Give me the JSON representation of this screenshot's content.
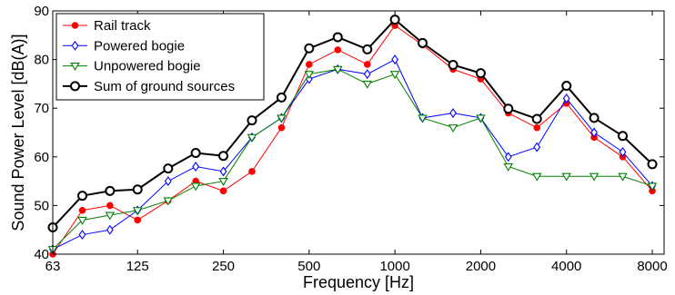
{
  "chart_data": {
    "type": "line",
    "xlabel": "Frequency [Hz]",
    "ylabel": "Sound Power Level [dB(A)]",
    "x": [
      63,
      80,
      100,
      125,
      160,
      200,
      250,
      315,
      400,
      500,
      630,
      800,
      1000,
      1250,
      1600,
      2000,
      2500,
      3150,
      4000,
      5000,
      6300,
      8000
    ],
    "x_scale": "log",
    "xlim": [
      63,
      8800
    ],
    "ylim": [
      40,
      90
    ],
    "x_ticks": [
      63,
      125,
      250,
      500,
      1000,
      2000,
      4000,
      8000
    ],
    "x_tick_labels": [
      "63",
      "125",
      "250",
      "500",
      "1000",
      "2000",
      "4000",
      "8000"
    ],
    "y_ticks": [
      40,
      50,
      60,
      70,
      80,
      90
    ],
    "y_tick_labels": [
      "40",
      "50",
      "60",
      "70",
      "80",
      "90"
    ],
    "grid": false,
    "legend_position": "top-left",
    "series": [
      {
        "name": "Rail track",
        "color": "#ff0000",
        "marker": "filled-circle",
        "values": [
          40,
          49,
          50,
          47,
          51,
          55,
          53,
          57,
          66,
          79,
          82,
          79,
          87,
          83,
          78,
          76,
          69,
          66,
          71,
          64,
          60,
          53
        ]
      },
      {
        "name": "Powered bogie",
        "color": "#0000ff",
        "marker": "open-diamond",
        "values": [
          41,
          44,
          45,
          49,
          55,
          58,
          57,
          64,
          68,
          76,
          78,
          77,
          80,
          68,
          69,
          68,
          60,
          62,
          72,
          65,
          61,
          54
        ]
      },
      {
        "name": "Unpowered bogie",
        "color": "#008000",
        "marker": "open-triangle-down",
        "values": [
          41,
          47,
          48,
          49,
          51,
          54,
          55,
          64,
          68,
          77,
          78,
          75,
          77,
          68,
          66,
          68,
          58,
          56,
          56,
          56,
          56,
          54
        ]
      },
      {
        "name": "Sum of ground sources",
        "color": "#000000",
        "marker": "open-circle",
        "values": [
          45.5,
          52,
          53,
          53.3,
          57.6,
          60.8,
          60.2,
          67.5,
          72.2,
          82.3,
          84.6,
          82.1,
          88.2,
          83.4,
          78.9,
          77.2,
          69.9,
          67.8,
          74.6,
          68,
          64.3,
          58.5
        ]
      }
    ]
  }
}
